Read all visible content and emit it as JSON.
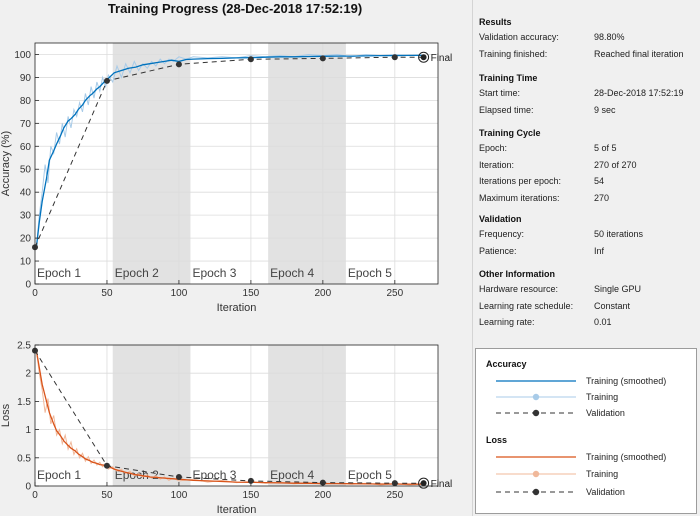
{
  "window": {
    "title": "Training Progress (28-Dec-2018 17:52:19)"
  },
  "colors": {
    "accuracy_smoothed": "#0072BD",
    "accuracy_raw": "#a8cbe8",
    "loss_smoothed": "#D95319",
    "loss_raw": "#f0b89a",
    "validation": "#333333",
    "epoch_shade": "#e2e2e2",
    "grid": "#dcdcdc"
  },
  "chart_data": [
    {
      "type": "line",
      "ylabel": "Accuracy (%)",
      "xlabel": "Iteration",
      "xlim": [
        0,
        280
      ],
      "ylim": [
        0,
        105
      ],
      "xticks": [
        0,
        50,
        100,
        150,
        200,
        250
      ],
      "yticks": [
        0,
        10,
        20,
        30,
        40,
        50,
        60,
        70,
        80,
        90,
        100
      ],
      "grid": true,
      "epochs": [
        {
          "label": "Epoch 1",
          "start": 0,
          "end": 54
        },
        {
          "label": "Epoch 2",
          "start": 54,
          "end": 108
        },
        {
          "label": "Epoch 3",
          "start": 108,
          "end": 162
        },
        {
          "label": "Epoch 4",
          "start": 162,
          "end": 216
        },
        {
          "label": "Epoch 5",
          "start": 216,
          "end": 270
        }
      ],
      "final_label": "Final",
      "final_point": {
        "x": 270,
        "y": 98.8
      },
      "series": [
        {
          "x": [
            1,
            3,
            5,
            8,
            10,
            13,
            15,
            18,
            20,
            23,
            25,
            28,
            30,
            33,
            35,
            38,
            40,
            43,
            45,
            48,
            50,
            55,
            60,
            65,
            70,
            75,
            80,
            85,
            90,
            95,
            100,
            105,
            110,
            120,
            130,
            140,
            150,
            160,
            170,
            180,
            190,
            200,
            210,
            220,
            230,
            240,
            250,
            260,
            270
          ],
          "y": [
            16,
            27,
            36,
            46,
            54,
            58,
            61,
            65,
            68,
            71,
            72,
            74,
            76,
            78,
            80,
            82,
            83,
            85,
            86,
            88,
            89,
            92,
            93,
            94,
            94.5,
            95.5,
            96,
            96.5,
            97,
            97.5,
            97,
            97.8,
            98,
            98.2,
            98.3,
            98.5,
            98.6,
            98.8,
            99,
            99,
            99.1,
            99.2,
            99.3,
            99.3,
            99.4,
            99.5,
            99.5,
            99.6,
            99.6
          ]
        },
        {
          "x": [
            1,
            3,
            5,
            7,
            9,
            11,
            13,
            15,
            17,
            19,
            21,
            23,
            25,
            27,
            29,
            31,
            33,
            35,
            37,
            39,
            41,
            43,
            45,
            47,
            49,
            51,
            54,
            57,
            60,
            63,
            66,
            69,
            72,
            75,
            78,
            81,
            84,
            87,
            90,
            93,
            96,
            100,
            105,
            110,
            120,
            130,
            140,
            150,
            160,
            170,
            180,
            190,
            200,
            210,
            220,
            230,
            240,
            250,
            260,
            270
          ],
          "y": [
            16,
            30,
            40,
            52,
            44,
            60,
            57,
            66,
            61,
            70,
            64,
            73,
            68,
            76,
            73,
            79,
            75,
            83,
            78,
            86,
            81,
            88,
            84,
            90,
            86,
            91,
            88,
            95,
            90,
            96,
            92,
            97,
            93,
            96,
            94,
            97,
            95,
            98,
            96,
            98,
            97,
            99,
            98,
            99,
            98.5,
            99,
            98.5,
            99.5,
            99,
            99.5,
            99,
            100,
            99.5,
            100,
            99,
            100,
            99.5,
            100,
            99.5,
            99.8
          ]
        },
        {
          "x": [
            0,
            50,
            100,
            150,
            200,
            250,
            270
          ],
          "y": [
            16,
            88.5,
            95.7,
            97.9,
            98.3,
            98.8,
            98.8
          ]
        }
      ]
    },
    {
      "type": "line",
      "ylabel": "Loss",
      "xlabel": "Iteration",
      "xlim": [
        0,
        280
      ],
      "ylim": [
        0,
        2.5
      ],
      "xticks": [
        0,
        50,
        100,
        150,
        200,
        250
      ],
      "yticks": [
        0,
        0.5,
        1,
        1.5,
        2,
        2.5
      ],
      "grid": true,
      "epochs": [
        {
          "label": "Epoch 1",
          "start": 0,
          "end": 54
        },
        {
          "label": "Epoch 2",
          "start": 54,
          "end": 108
        },
        {
          "label": "Epoch 3",
          "start": 108,
          "end": 162
        },
        {
          "label": "Epoch 4",
          "start": 162,
          "end": 216
        },
        {
          "label": "Epoch 5",
          "start": 216,
          "end": 270
        }
      ],
      "final_label": "Final",
      "final_point": {
        "x": 270,
        "y": 0.05
      },
      "series": [
        {
          "x": [
            1,
            3,
            5,
            8,
            10,
            13,
            15,
            18,
            20,
            23,
            25,
            28,
            30,
            33,
            35,
            38,
            40,
            43,
            45,
            48,
            50,
            55,
            60,
            65,
            70,
            75,
            80,
            85,
            90,
            95,
            100,
            110,
            120,
            130,
            140,
            150,
            160,
            170,
            180,
            190,
            200,
            210,
            220,
            230,
            240,
            250,
            260,
            270
          ],
          "y": [
            2.4,
            2.1,
            1.8,
            1.5,
            1.3,
            1.1,
            0.98,
            0.88,
            0.8,
            0.72,
            0.67,
            0.62,
            0.57,
            0.52,
            0.48,
            0.45,
            0.42,
            0.4,
            0.38,
            0.37,
            0.36,
            0.3,
            0.26,
            0.23,
            0.2,
            0.18,
            0.16,
            0.15,
            0.14,
            0.13,
            0.12,
            0.1,
            0.09,
            0.08,
            0.07,
            0.065,
            0.06,
            0.055,
            0.05,
            0.048,
            0.045,
            0.042,
            0.04,
            0.038,
            0.036,
            0.035,
            0.034,
            0.033
          ]
        },
        {
          "x": [
            1,
            3,
            5,
            7,
            9,
            11,
            13,
            15,
            17,
            19,
            21,
            23,
            25,
            27,
            29,
            31,
            33,
            35,
            37,
            39,
            41,
            43,
            45,
            47,
            49,
            51,
            54,
            57,
            60,
            63,
            66,
            69,
            72,
            75,
            78,
            81,
            84,
            87,
            90,
            93,
            96,
            100,
            110,
            120,
            130,
            140,
            150,
            160,
            170,
            180,
            190,
            200,
            210,
            220,
            230,
            240,
            250,
            260,
            270
          ],
          "y": [
            2.4,
            2.0,
            1.7,
            1.3,
            1.55,
            1.1,
            1.25,
            0.9,
            1.0,
            0.75,
            0.9,
            0.65,
            0.78,
            0.56,
            0.66,
            0.5,
            0.58,
            0.44,
            0.52,
            0.4,
            0.46,
            0.37,
            0.42,
            0.34,
            0.38,
            0.3,
            0.34,
            0.26,
            0.3,
            0.22,
            0.26,
            0.18,
            0.22,
            0.16,
            0.2,
            0.14,
            0.18,
            0.12,
            0.16,
            0.1,
            0.14,
            0.09,
            0.12,
            0.07,
            0.1,
            0.06,
            0.08,
            0.05,
            0.07,
            0.04,
            0.06,
            0.03,
            0.05,
            0.03,
            0.05,
            0.02,
            0.04,
            0.02,
            0.03
          ]
        },
        {
          "x": [
            0,
            50,
            100,
            150,
            200,
            250,
            270
          ],
          "y": [
            2.4,
            0.36,
            0.16,
            0.09,
            0.06,
            0.05,
            0.05
          ]
        }
      ]
    }
  ],
  "info": {
    "results": {
      "title": "Results",
      "rows": [
        {
          "label": "Validation accuracy:",
          "value": "98.80%"
        },
        {
          "label": "Training finished:",
          "value": "Reached final iteration"
        }
      ]
    },
    "training_time": {
      "title": "Training Time",
      "rows": [
        {
          "label": "Start time:",
          "value": "28-Dec-2018 17:52:19"
        },
        {
          "label": "Elapsed time:",
          "value": "9 sec"
        }
      ]
    },
    "training_cycle": {
      "title": "Training Cycle",
      "rows": [
        {
          "label": "Epoch:",
          "value": "5 of 5"
        },
        {
          "label": "Iteration:",
          "value": "270 of 270"
        },
        {
          "label": "Iterations per epoch:",
          "value": "54"
        },
        {
          "label": "Maximum iterations:",
          "value": "270"
        }
      ]
    },
    "validation": {
      "title": "Validation",
      "rows": [
        {
          "label": "Frequency:",
          "value": "50 iterations"
        },
        {
          "label": "Patience:",
          "value": "Inf"
        }
      ]
    },
    "other": {
      "title": "Other Information",
      "rows": [
        {
          "label": "Hardware resource:",
          "value": "Single GPU"
        },
        {
          "label": "Learning rate schedule:",
          "value": "Constant"
        },
        {
          "label": "Learning rate:",
          "value": "0.01"
        }
      ]
    }
  },
  "legend": {
    "accuracy": {
      "title": "Accuracy",
      "smoothed": "Training (smoothed)",
      "training": "Training",
      "validation": "Validation"
    },
    "loss": {
      "title": "Loss",
      "smoothed": "Training (smoothed)",
      "training": "Training",
      "validation": "Validation"
    }
  }
}
